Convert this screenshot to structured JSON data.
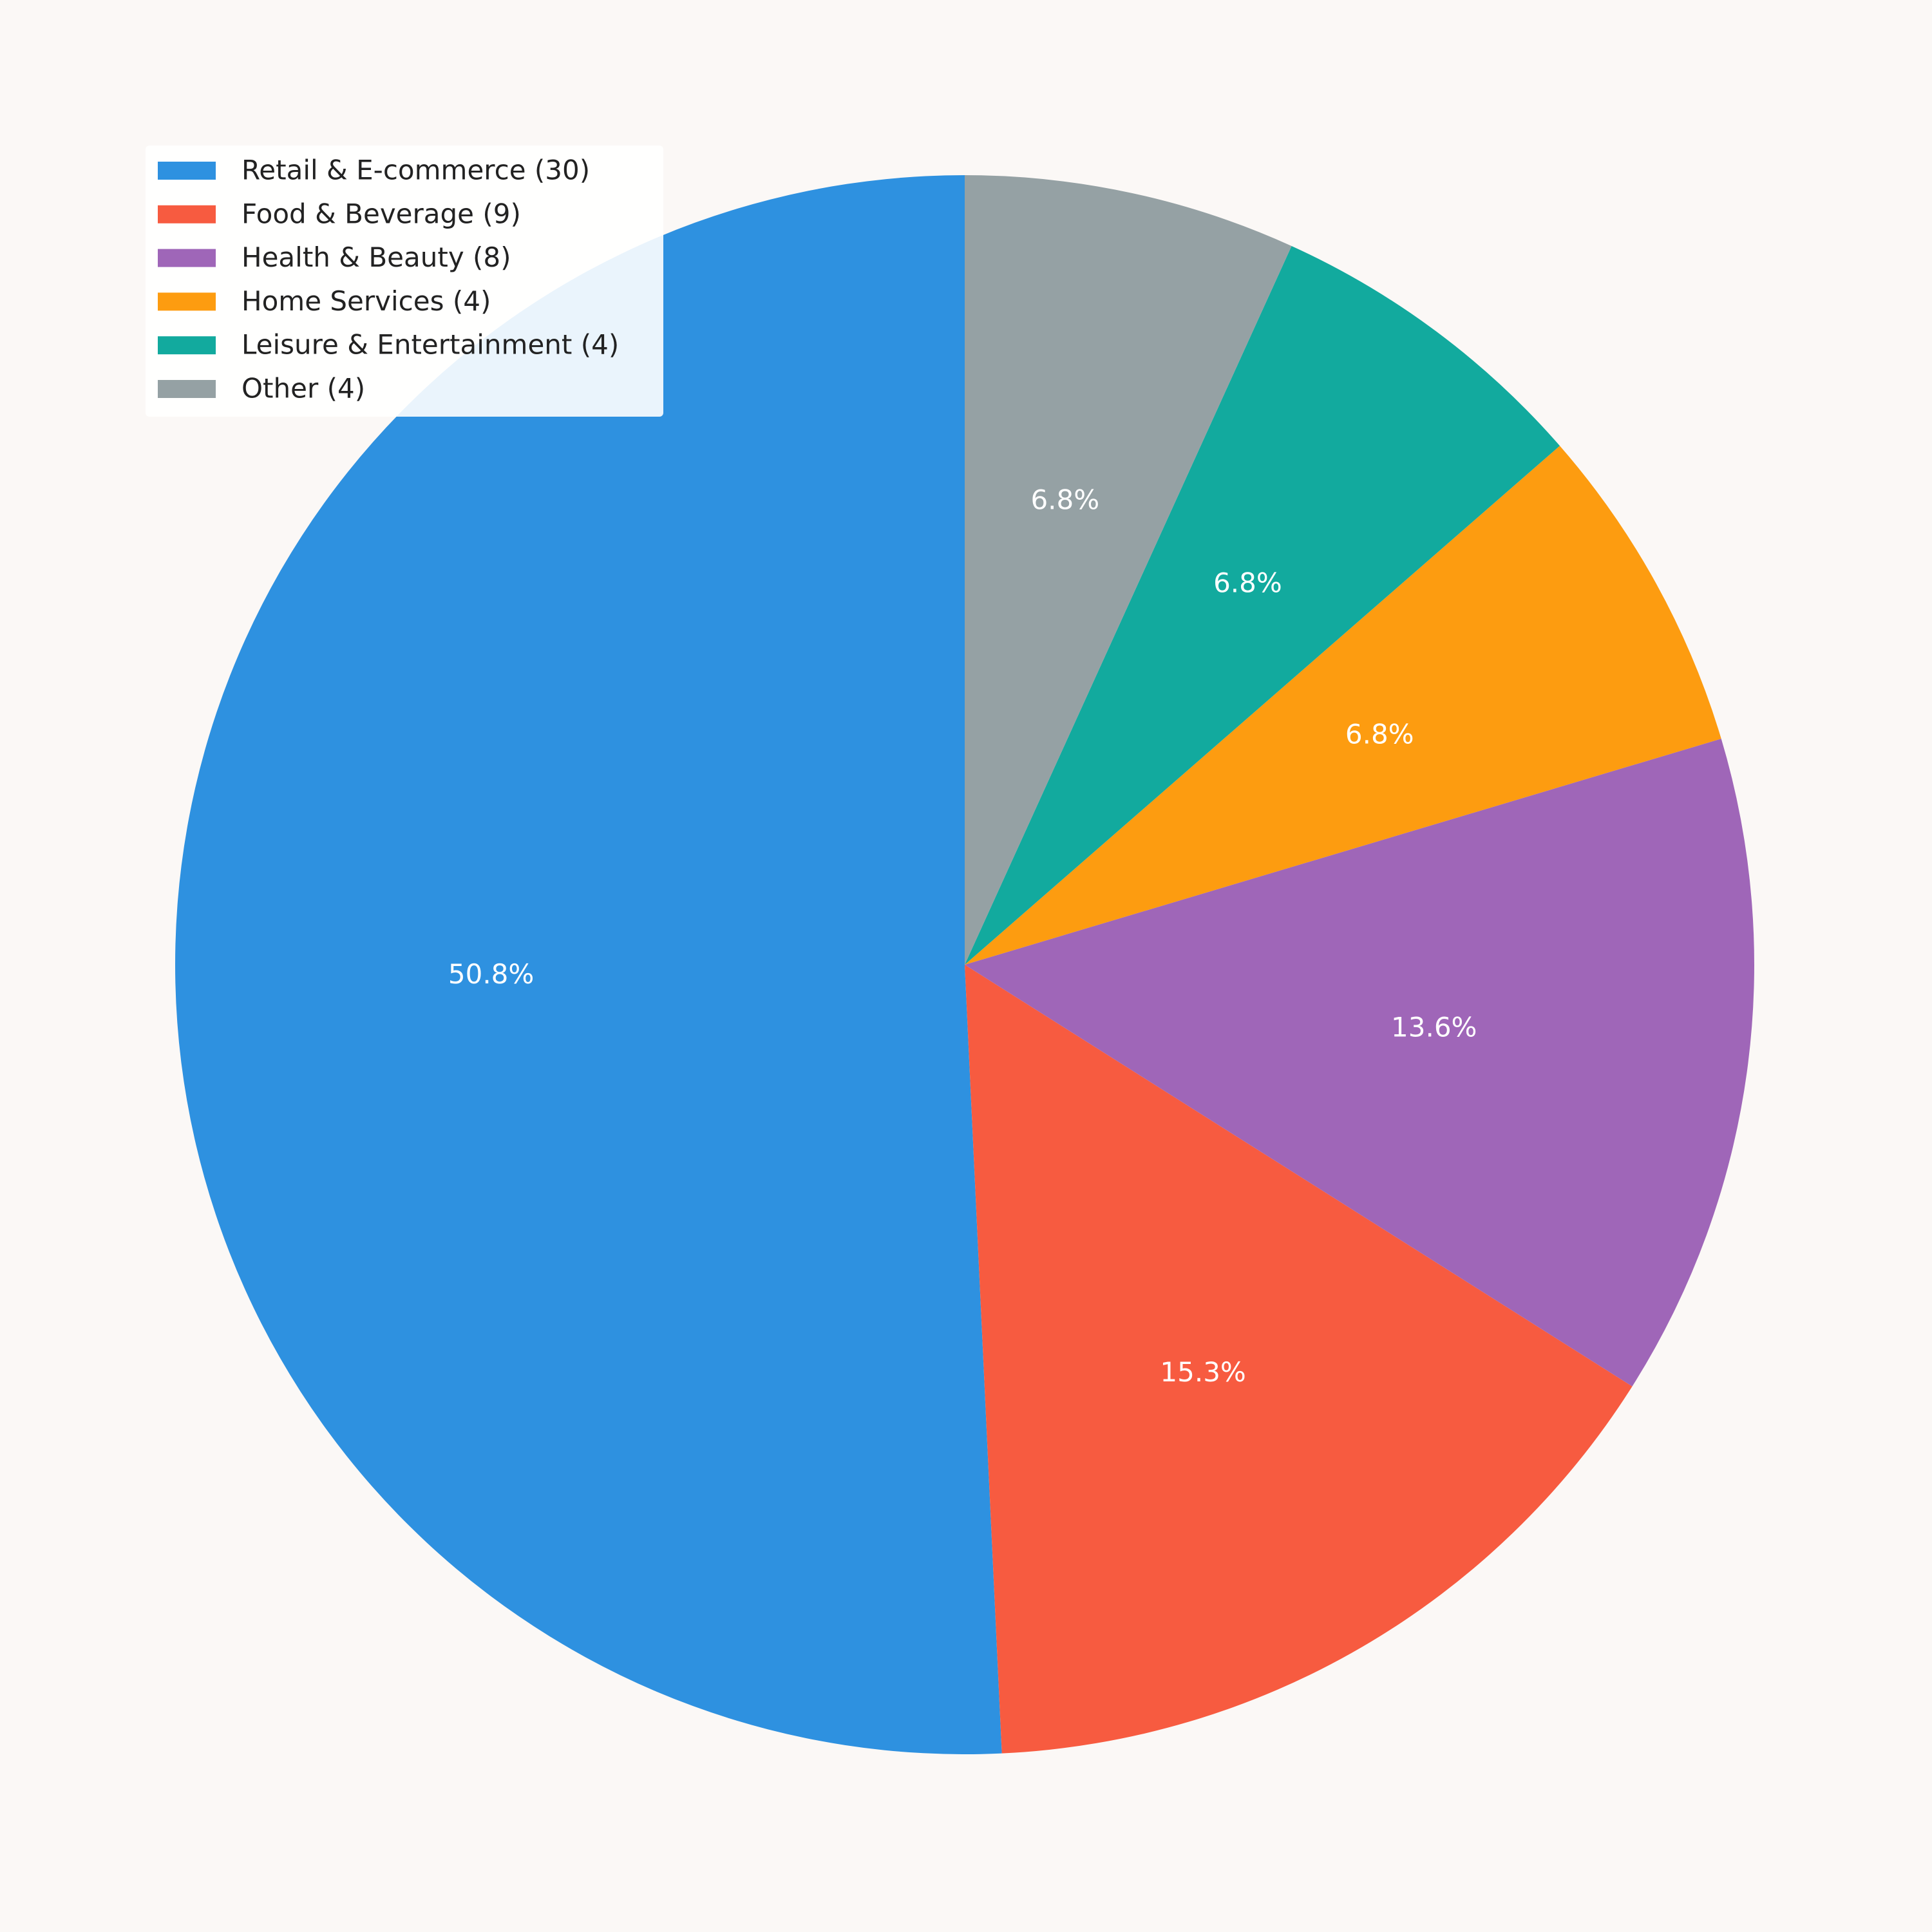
{
  "chart_data": {
    "type": "pie",
    "categories": [
      "Retail & E-commerce (30)",
      "Food & Beverage (9)",
      "Health & Beauty (8)",
      "Home Services (4)",
      "Leisure & Entertainment (4)",
      "Other (4)"
    ],
    "values": [
      50.8,
      15.3,
      13.6,
      6.8,
      6.8,
      6.8
    ],
    "value_labels": [
      "50.8%",
      "15.3%",
      "13.6%",
      "6.8%",
      "6.8%",
      "6.8%"
    ],
    "colors": [
      "#2e91e0",
      "#f75b40",
      "#9f66b8",
      "#fd9c10",
      "#12aa9e",
      "#95a1a4"
    ],
    "legend": "upper left"
  }
}
